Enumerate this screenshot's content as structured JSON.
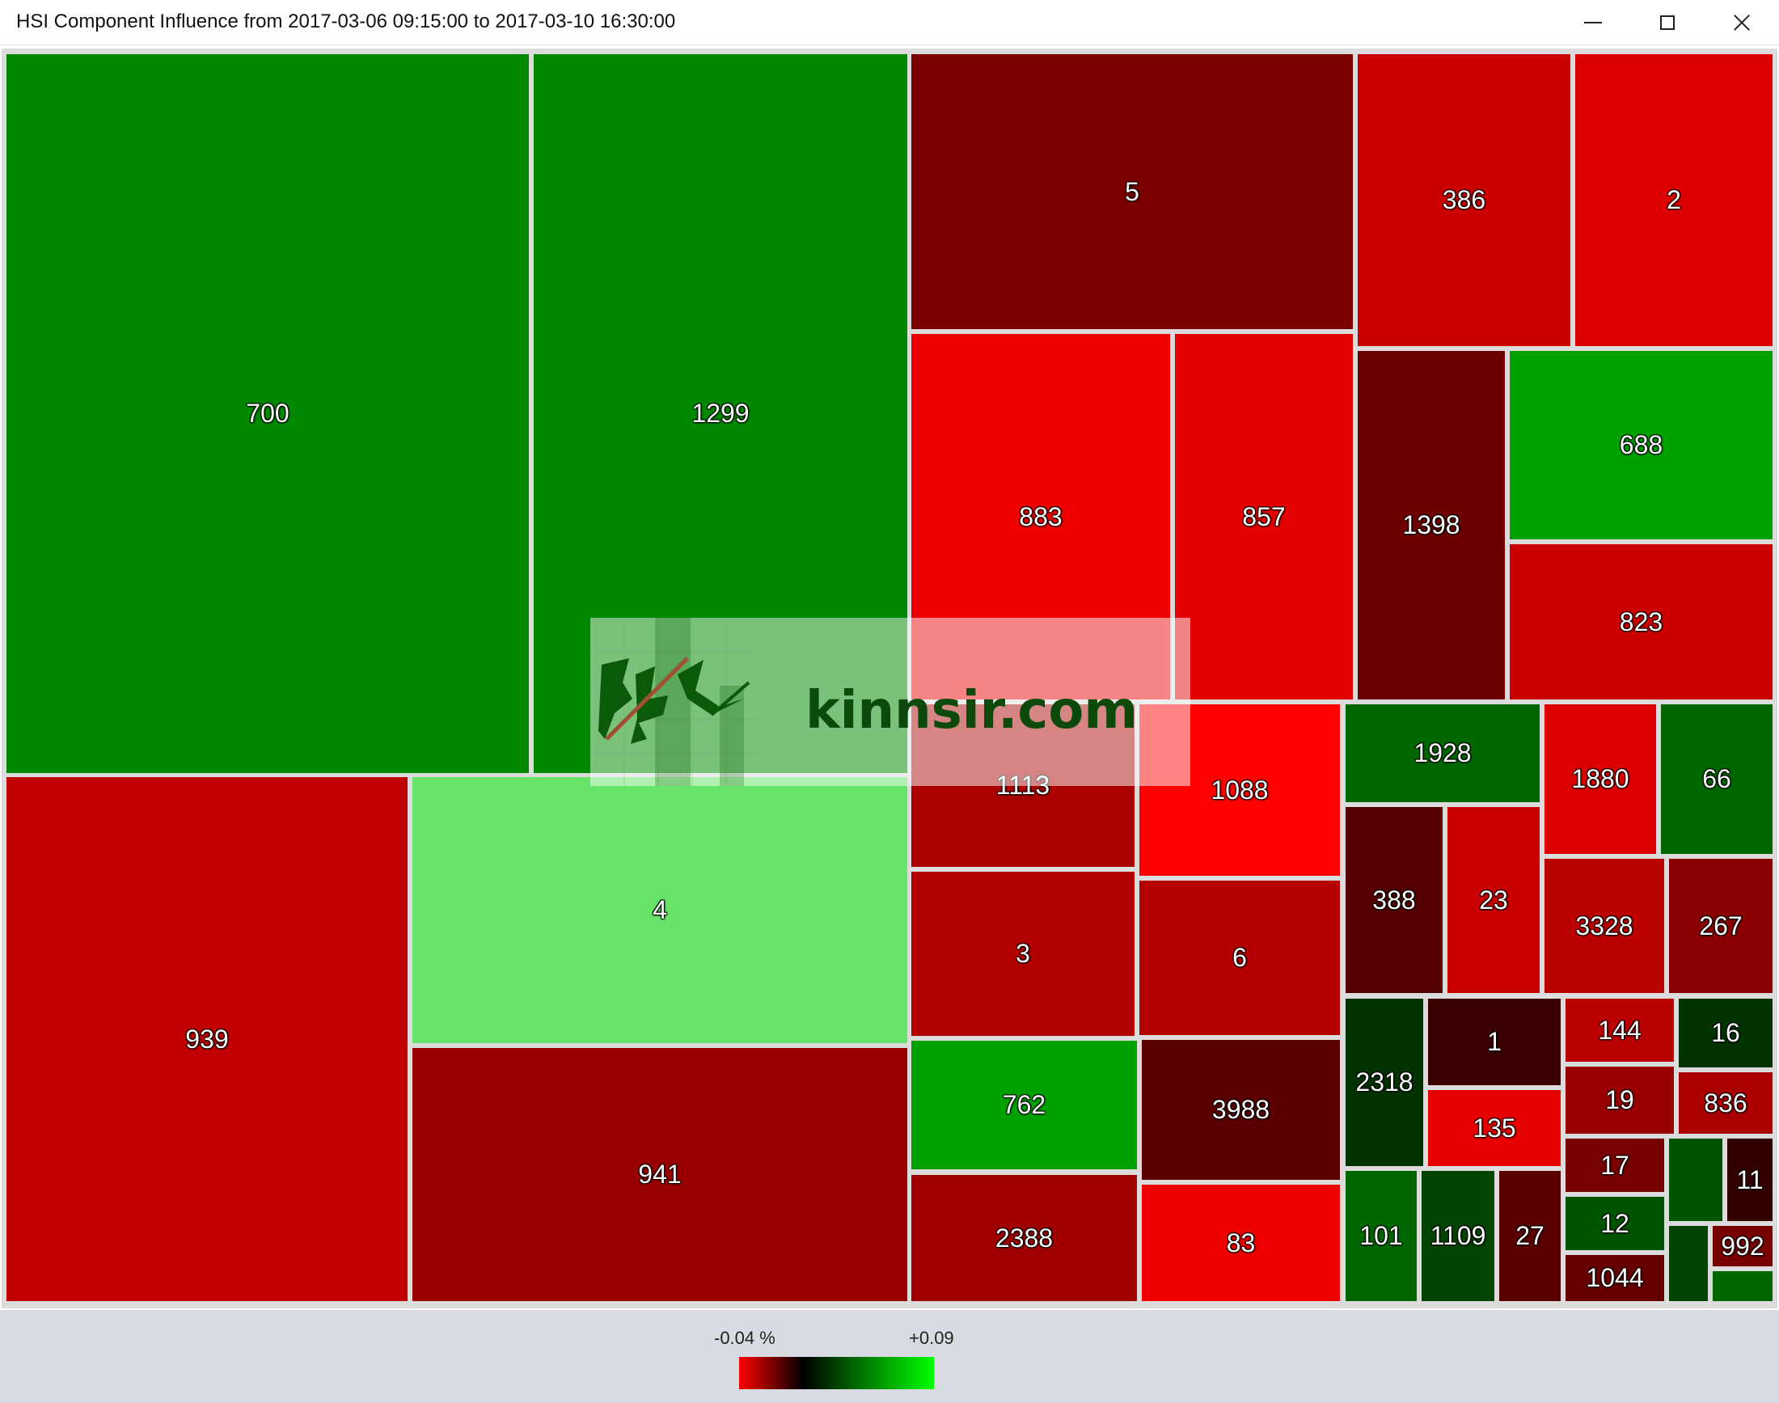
{
  "window": {
    "title": "HSI Component Influence from 2017-03-06 09:15:00 to 2017-03-10 16:30:00",
    "controls": [
      "minimize",
      "maximize",
      "close"
    ]
  },
  "watermark": {
    "text": "kinnsir.com"
  },
  "legend": {
    "min_label": "-0.04 %",
    "max_label": "+0.09",
    "colors": [
      "#ff0000",
      "#000000",
      "#00ff00"
    ]
  },
  "treemap": {
    "cells": [
      {
        "label": "700",
        "color": "#008800"
      },
      {
        "label": "1299",
        "color": "#008800"
      },
      {
        "label": "939",
        "color": "#c00000"
      },
      {
        "label": "4",
        "color": "#68e36a"
      },
      {
        "label": "941",
        "color": "#990000"
      },
      {
        "label": "5",
        "color": "#7a0000"
      },
      {
        "label": "386",
        "color": "#cc0000"
      },
      {
        "label": "2",
        "color": "#dd0000"
      },
      {
        "label": "883",
        "color": "#ee0000"
      },
      {
        "label": "857",
        "color": "#e20000"
      },
      {
        "label": "1398",
        "color": "#6e0000"
      },
      {
        "label": "688",
        "color": "#00a000"
      },
      {
        "label": "823",
        "color": "#cc0000"
      },
      {
        "label": "1113",
        "color": "#aa0000"
      },
      {
        "label": "1088",
        "color": "#ff0000"
      },
      {
        "label": "3",
        "color": "#b00000"
      },
      {
        "label": "6",
        "color": "#b40000"
      },
      {
        "label": "762",
        "color": "#00a000"
      },
      {
        "label": "3988",
        "color": "#5a0000"
      },
      {
        "label": "2388",
        "color": "#a00000"
      },
      {
        "label": "83",
        "color": "#ee0000"
      },
      {
        "label": "1928",
        "color": "#006600"
      },
      {
        "label": "1880",
        "color": "#dd0000"
      },
      {
        "label": "66",
        "color": "#006600"
      },
      {
        "label": "388",
        "color": "#550000"
      },
      {
        "label": "23",
        "color": "#c80000"
      },
      {
        "label": "3328",
        "color": "#bb0000"
      },
      {
        "label": "267",
        "color": "#8a0000"
      },
      {
        "label": "2318",
        "color": "#003300"
      },
      {
        "label": "1",
        "color": "#3a0000"
      },
      {
        "label": "144",
        "color": "#bb0000"
      },
      {
        "label": "16",
        "color": "#003300"
      },
      {
        "label": "135",
        "color": "#e60000"
      },
      {
        "label": "19",
        "color": "#990000"
      },
      {
        "label": "836",
        "color": "#aa0000"
      },
      {
        "label": "17",
        "color": "#770000"
      },
      {
        "label": "",
        "color": "#005500"
      },
      {
        "label": "11",
        "color": "#330000"
      },
      {
        "label": "101",
        "color": "#006600"
      },
      {
        "label": "1109",
        "color": "#004400"
      },
      {
        "label": "27",
        "color": "#5a0000"
      },
      {
        "label": "12",
        "color": "#005500"
      },
      {
        "label": "992",
        "color": "#770000"
      },
      {
        "label": "1044",
        "color": "#660000"
      },
      {
        "label": "",
        "color": "#004400"
      },
      {
        "label": "",
        "color": "#006600"
      }
    ]
  }
}
